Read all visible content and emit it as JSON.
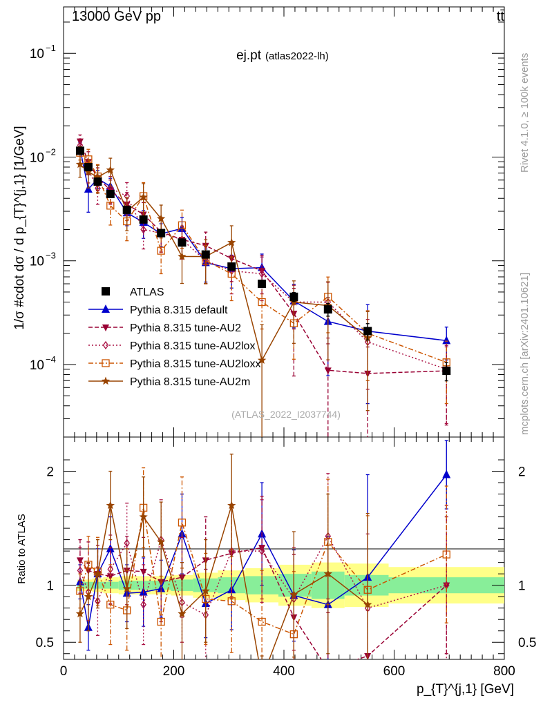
{
  "header": {
    "left": "13000 GeV pp",
    "right": "tt̄"
  },
  "side_text": {
    "rivet": "Rivet 4.1.0, ≥ 100k events",
    "mcplots": "mcplots.cern.ch [arXiv:2401.10621]"
  },
  "chart_data": [
    {
      "type": "line",
      "title": "ej.pt",
      "subtitle": "(atlas2022-lh)",
      "watermark": "(ATLAS_2022_I2037744)",
      "ylabel": "1/σ #cdot dσ / d p_{T}^{j,1} [1/GeV]",
      "xlabel": "p_{T}^{j,1} [GeV]",
      "yscale": "log",
      "xlim": [
        0,
        800
      ],
      "ylim": [
        2e-05,
        0.28
      ],
      "y_ticks": [
        {
          "value": 0.1,
          "base": "10",
          "exp": "−1"
        },
        {
          "value": 0.01,
          "base": "10",
          "exp": "−2"
        },
        {
          "value": 0.001,
          "base": "10",
          "exp": "−3"
        },
        {
          "value": 0.0001,
          "base": "10",
          "exp": "−4"
        }
      ],
      "legend_position": "bottom-left",
      "series": [
        {
          "name": "ATLAS",
          "color": "#000000",
          "marker": "square",
          "dash": "",
          "x": [
            30,
            45,
            62,
            85,
            115,
            145,
            177,
            215,
            258,
            305,
            360,
            418,
            480,
            552,
            695
          ],
          "y": [
            0.0115,
            0.008,
            0.0058,
            0.0044,
            0.0031,
            0.0025,
            0.00185,
            0.0015,
            0.00115,
            0.00088,
            0.0006,
            0.00045,
            0.00034,
            0.00021,
            8.7e-05
          ],
          "err": [
            0.03,
            0.03,
            0.03,
            0.03,
            0.04,
            0.04,
            0.04,
            0.05,
            0.06,
            0.07,
            0.08,
            0.1,
            0.14,
            0.18,
            0.2
          ]
        },
        {
          "name": "Pythia 8.315 default",
          "color": "#0000cc",
          "marker": "triangle-up",
          "dash": "",
          "x": [
            30,
            45,
            62,
            85,
            115,
            145,
            177,
            215,
            258,
            305,
            360,
            418,
            480,
            552,
            695
          ],
          "y": [
            0.012,
            0.0049,
            0.0062,
            0.0052,
            0.0029,
            0.00235,
            0.00182,
            0.00205,
            0.00096,
            0.00084,
            0.00086,
            0.00041,
            0.00026,
            0.00021,
            0.00017
          ],
          "err": [
            0.15,
            0.4,
            0.2,
            0.2,
            0.25,
            0.3,
            0.25,
            0.28,
            0.35,
            0.35,
            0.35,
            0.45,
            0.7,
            0.8,
            0.35
          ]
        },
        {
          "name": "Pythia 8.315 tune-AU2",
          "color": "#990033",
          "marker": "triangle-down",
          "dash": "6,3",
          "x": [
            30,
            45,
            62,
            85,
            115,
            145,
            177,
            215,
            258,
            305,
            360,
            418,
            480,
            552,
            695
          ],
          "y": [
            0.0142,
            0.009,
            0.0063,
            0.0048,
            0.0035,
            0.0028,
            0.0019,
            0.0016,
            0.0014,
            0.00105,
            0.0008,
            0.00031,
            8.8e-05,
            8.2e-05,
            8.7e-05
          ],
          "err": [
            0.15,
            0.25,
            0.25,
            0.25,
            0.3,
            0.3,
            0.35,
            0.35,
            0.35,
            0.4,
            0.4,
            0.75,
            0.8,
            0.8,
            0.7
          ]
        },
        {
          "name": "Pythia 8.315 tune-AU2lox",
          "color": "#aa1144",
          "marker": "diamond-open",
          "dash": "2,3",
          "x": [
            30,
            45,
            62,
            85,
            115,
            145,
            177,
            215,
            258,
            305,
            360,
            418,
            480,
            552,
            695
          ],
          "y": [
            0.013,
            0.0075,
            0.005,
            0.005,
            0.0042,
            0.002,
            0.00185,
            0.0016,
            0.001,
            0.0008,
            0.00075,
            0.0004,
            0.0004,
            0.000165,
            9e-05
          ],
          "err": [
            0.15,
            0.25,
            0.3,
            0.3,
            0.35,
            0.35,
            0.35,
            0.35,
            0.4,
            0.4,
            0.45,
            0.45,
            0.55,
            0.65,
            0.7
          ]
        },
        {
          "name": "Pythia 8.315 tune-AU2loxx",
          "color": "#cc5500",
          "marker": "square-open",
          "dash": "7,3,2,3",
          "x": [
            30,
            45,
            62,
            85,
            115,
            145,
            177,
            215,
            258,
            305,
            360,
            418,
            480,
            552,
            695
          ],
          "y": [
            0.011,
            0.0095,
            0.0065,
            0.0034,
            0.0024,
            0.0042,
            0.00125,
            0.0022,
            0.001,
            0.00075,
            0.0004,
            0.00025,
            0.00045,
            0.0002,
            0.000105
          ],
          "err": [
            0.15,
            0.25,
            0.3,
            0.35,
            0.35,
            0.35,
            0.4,
            0.4,
            0.4,
            0.45,
            0.45,
            0.55,
            0.55,
            0.65,
            0.6
          ]
        },
        {
          "name": "Pythia 8.315 tune-AU2m",
          "color": "#994400",
          "marker": "star",
          "dash": "",
          "x": [
            30,
            45,
            62,
            85,
            115,
            145,
            177,
            215,
            258,
            305,
            360,
            418,
            480,
            552,
            695
          ],
          "y": [
            0.0085,
            0.0072,
            0.0064,
            0.0075,
            0.003,
            0.0041,
            0.00255,
            0.0011,
            0.0011,
            0.0015,
            0.00011,
            0.0004,
            0.00037,
            0.00018,
            null
          ],
          "err": [
            0.25,
            0.3,
            0.3,
            0.3,
            0.35,
            0.35,
            0.35,
            0.45,
            0.45,
            0.45,
            1.2,
            0.6,
            0.7,
            0.8,
            0
          ]
        }
      ]
    },
    {
      "type": "line",
      "ylabel": "Ratio to ATLAS",
      "xlabel": "p_{T}^{j,1} [GeV]",
      "xlim": [
        0,
        800
      ],
      "ylim": [
        0.35,
        2.3
      ],
      "y_ticks": [
        0.5,
        1,
        2
      ],
      "x_ticks": [
        0,
        200,
        400,
        600,
        800
      ],
      "bands": {
        "bin_edges": [
          25,
          38,
          52,
          72,
          100,
          130,
          160,
          195,
          235,
          280,
          330,
          390,
          450,
          510,
          590,
          800
        ],
        "inner": [
          0.03,
          0.03,
          0.03,
          0.03,
          0.04,
          0.04,
          0.04,
          0.05,
          0.06,
          0.07,
          0.08,
          0.1,
          0.12,
          0.09,
          0.07
        ],
        "outer": [
          0.05,
          0.05,
          0.06,
          0.07,
          0.08,
          0.08,
          0.08,
          0.09,
          0.11,
          0.13,
          0.15,
          0.18,
          0.2,
          0.19,
          0.16
        ],
        "inner_color": "#88ee99",
        "outer_color": "#ffff88"
      },
      "series": [
        {
          "name": "Pythia 8.315 default",
          "color": "#0000cc",
          "marker": "triangle-up",
          "dash": "",
          "x": [
            30,
            45,
            62,
            85,
            115,
            145,
            177,
            215,
            258,
            305,
            360,
            418,
            480,
            552,
            695
          ],
          "y": [
            1.03,
            0.63,
            1.1,
            1.32,
            0.93,
            0.94,
            0.97,
            1.45,
            0.84,
            0.96,
            1.45,
            0.91,
            0.83,
            1.07,
            1.97
          ],
          "err": [
            0.15,
            0.2,
            0.22,
            0.28,
            0.25,
            0.3,
            0.25,
            0.35,
            0.3,
            0.35,
            0.45,
            0.4,
            0.6,
            0.9,
            0.3
          ]
        },
        {
          "name": "Pythia 8.315 tune-AU2",
          "color": "#990033",
          "marker": "triangle-down",
          "dash": "6,3",
          "x": [
            30,
            45,
            62,
            85,
            115,
            145,
            177,
            215,
            258,
            305,
            360,
            418,
            480,
            552,
            695
          ],
          "y": [
            1.22,
            1.13,
            1.1,
            1.08,
            1.13,
            1.12,
            1.03,
            1.07,
            1.22,
            1.28,
            1.33,
            0.72,
            0.26,
            0.38,
            1.0
          ],
          "err": [
            0.18,
            0.25,
            0.25,
            0.25,
            0.3,
            0.3,
            0.35,
            0.35,
            0.38,
            0.4,
            0.45,
            0.55,
            0.5,
            0.4,
            0.6
          ]
        },
        {
          "name": "Pythia 8.315 tune-AU2lox",
          "color": "#aa1144",
          "marker": "diamond-open",
          "dash": "2,3",
          "x": [
            30,
            45,
            62,
            85,
            115,
            145,
            177,
            215,
            258,
            305,
            360,
            418,
            480,
            552,
            695
          ],
          "y": [
            1.13,
            0.94,
            0.86,
            1.14,
            1.37,
            0.83,
            1.4,
            0.85,
            0.74,
            1.3,
            1.3,
            0.88,
            1.43,
            0.8,
            1.0
          ],
          "err": [
            0.2,
            0.25,
            0.3,
            0.3,
            0.35,
            0.35,
            0.35,
            0.35,
            0.4,
            0.4,
            0.45,
            0.45,
            0.55,
            0.65,
            0.7
          ]
        },
        {
          "name": "Pythia 8.315 tune-AU2loxx",
          "color": "#cc5500",
          "marker": "square-open",
          "dash": "7,3,2,3",
          "x": [
            30,
            45,
            62,
            85,
            115,
            145,
            177,
            215,
            258,
            305,
            360,
            418,
            480,
            552,
            695
          ],
          "y": [
            0.95,
            1.18,
            1.12,
            0.83,
            0.78,
            1.68,
            0.68,
            1.55,
            0.88,
            0.86,
            0.68,
            0.57,
            1.38,
            0.96,
            1.27
          ],
          "err": [
            0.15,
            0.25,
            0.3,
            0.35,
            0.35,
            0.35,
            0.4,
            0.4,
            0.4,
            0.45,
            0.45,
            0.55,
            0.55,
            0.65,
            0.6
          ]
        },
        {
          "name": "Pythia 8.315 tune-AU2m",
          "color": "#994400",
          "marker": "star",
          "dash": "",
          "x": [
            30,
            45,
            62,
            85,
            115,
            145,
            177,
            215,
            258,
            305,
            360,
            418,
            480,
            552,
            695
          ],
          "y": [
            0.75,
            0.9,
            1.1,
            1.7,
            0.97,
            1.6,
            1.38,
            0.75,
            0.95,
            1.7,
            0.18,
            0.92,
            1.1,
            0.83,
            null
          ],
          "err": [
            0.25,
            0.3,
            0.3,
            0.3,
            0.35,
            0.35,
            0.35,
            0.45,
            0.45,
            0.45,
            0.2,
            0.55,
            0.7,
            0.8,
            0
          ]
        }
      ]
    }
  ]
}
